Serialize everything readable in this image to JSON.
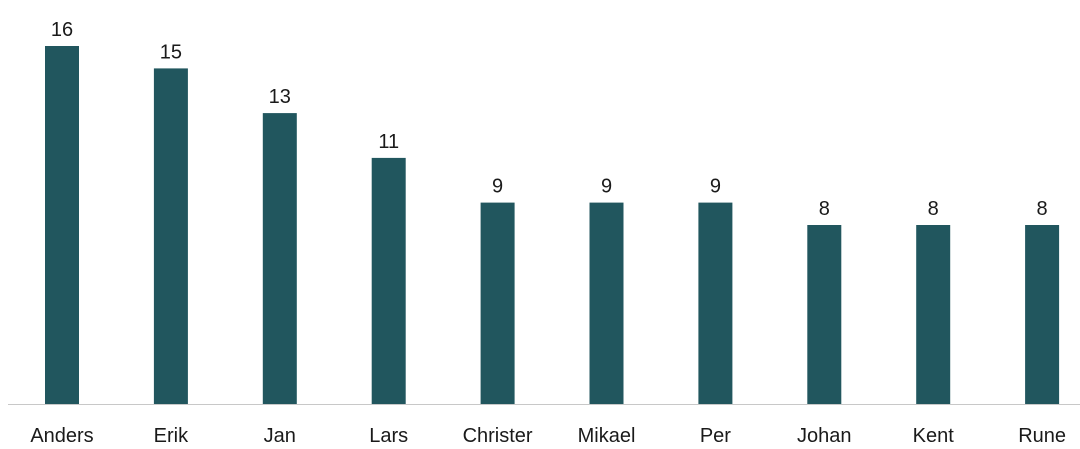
{
  "caption": "",
  "chart_data": {
    "type": "bar",
    "title": "",
    "xlabel": "",
    "ylabel": "",
    "categories": [
      "Anders",
      "Erik",
      "Jan",
      "Lars",
      "Christer",
      "Mikael",
      "Per",
      "Johan",
      "Kent",
      "Rune"
    ],
    "values": [
      16,
      15,
      13,
      11,
      9,
      9,
      9,
      8,
      8,
      8
    ],
    "ylim": [
      0,
      16
    ],
    "grid": false,
    "legend": "none",
    "data_labels": true,
    "colors": {
      "bar": "#21565E",
      "axis": "#c8c8c8"
    }
  }
}
